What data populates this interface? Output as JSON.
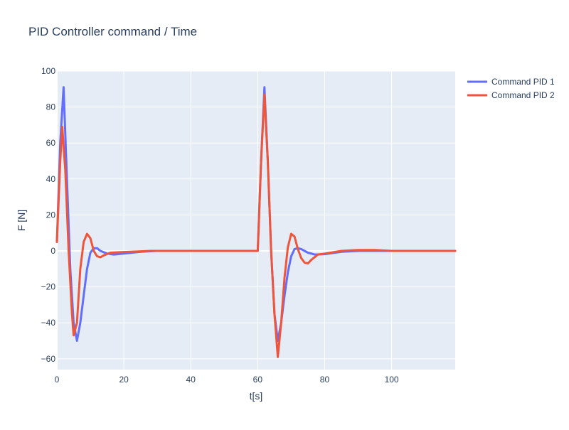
{
  "chart_data": {
    "type": "line",
    "title": "PID Controller command / Time",
    "xlabel": "t[s]",
    "ylabel": "F [N]",
    "xlim": [
      0,
      119
    ],
    "ylim": [
      -66,
      100
    ],
    "x_ticks": [
      0,
      20,
      40,
      60,
      80,
      100
    ],
    "y_ticks": [
      -60,
      -40,
      -20,
      0,
      20,
      40,
      60,
      80,
      100
    ],
    "x_tick_labels": [
      "0",
      "20",
      "40",
      "60",
      "80",
      "100"
    ],
    "y_tick_labels": [
      "−60",
      "−40",
      "−20",
      "0",
      "20",
      "40",
      "60",
      "80",
      "100"
    ],
    "grid": true,
    "legend_position": "top-right",
    "series": [
      {
        "name": "Command PID 1",
        "color": "#636efa",
        "points": [
          [
            0,
            5
          ],
          [
            1,
            60
          ],
          [
            2,
            91
          ],
          [
            3,
            40
          ],
          [
            4,
            -10
          ],
          [
            5,
            -40
          ],
          [
            6,
            -50
          ],
          [
            7,
            -40
          ],
          [
            8,
            -25
          ],
          [
            9,
            -10
          ],
          [
            10,
            -1
          ],
          [
            11,
            1.5
          ],
          [
            12,
            1.5
          ],
          [
            13,
            0
          ],
          [
            15,
            -1.5
          ],
          [
            17,
            -2
          ],
          [
            20,
            -1.5
          ],
          [
            25,
            -0.5
          ],
          [
            30,
            0
          ],
          [
            40,
            0
          ],
          [
            50,
            0
          ],
          [
            60,
            0
          ],
          [
            61,
            50
          ],
          [
            62,
            91
          ],
          [
            63,
            50
          ],
          [
            64,
            0
          ],
          [
            65,
            -35
          ],
          [
            66,
            -50
          ],
          [
            67,
            -40
          ],
          [
            68,
            -25
          ],
          [
            69,
            -12
          ],
          [
            70,
            -3
          ],
          [
            71,
            1
          ],
          [
            72,
            1.5
          ],
          [
            73,
            1
          ],
          [
            75,
            -1
          ],
          [
            77,
            -2
          ],
          [
            80,
            -1.8
          ],
          [
            85,
            -0.5
          ],
          [
            90,
            0
          ],
          [
            100,
            0
          ],
          [
            119,
            0
          ]
        ]
      },
      {
        "name": "Command PID 2",
        "color": "#ef553b",
        "points": [
          [
            0,
            5
          ],
          [
            1,
            50
          ],
          [
            1.6,
            69
          ],
          [
            2.5,
            45
          ],
          [
            3.5,
            0
          ],
          [
            4.5,
            -35
          ],
          [
            5,
            -47
          ],
          [
            6,
            -40
          ],
          [
            7,
            -10
          ],
          [
            8,
            5
          ],
          [
            9,
            9.5
          ],
          [
            10,
            7
          ],
          [
            11,
            0
          ],
          [
            12,
            -3
          ],
          [
            13,
            -3.5
          ],
          [
            14,
            -2.5
          ],
          [
            16,
            -1
          ],
          [
            18,
            -0.8
          ],
          [
            22,
            -0.5
          ],
          [
            28,
            0
          ],
          [
            40,
            0
          ],
          [
            50,
            0
          ],
          [
            60,
            0
          ],
          [
            61,
            50
          ],
          [
            62,
            87
          ],
          [
            63,
            50
          ],
          [
            64,
            0
          ],
          [
            65,
            -35
          ],
          [
            66,
            -59
          ],
          [
            67,
            -40
          ],
          [
            68,
            -15
          ],
          [
            69,
            2
          ],
          [
            70,
            9.5
          ],
          [
            71,
            8
          ],
          [
            72,
            1
          ],
          [
            73,
            -4
          ],
          [
            74,
            -6.5
          ],
          [
            75,
            -7
          ],
          [
            76,
            -5
          ],
          [
            78,
            -2
          ],
          [
            80,
            -1.5
          ],
          [
            85,
            0
          ],
          [
            90,
            0.5
          ],
          [
            95,
            0.5
          ],
          [
            100,
            0
          ],
          [
            119,
            0
          ]
        ]
      }
    ]
  }
}
